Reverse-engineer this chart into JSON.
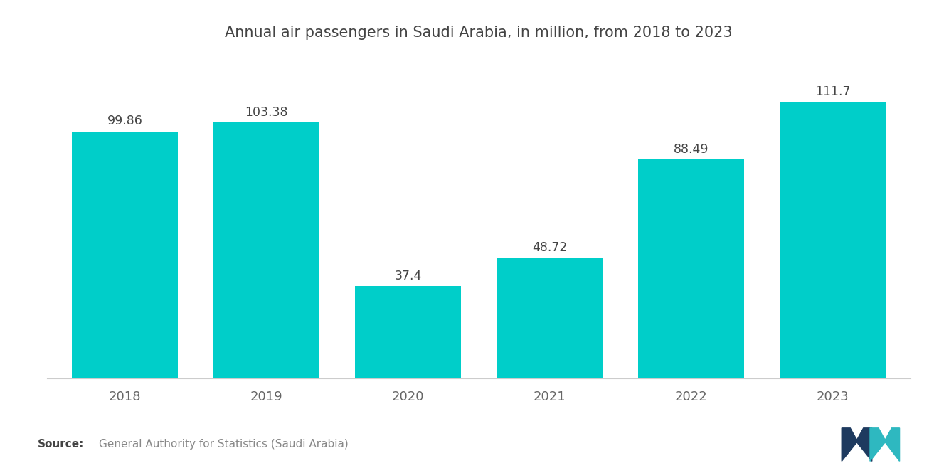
{
  "title": "Annual air passengers in Saudi Arabia, in million, from 2018 to 2023",
  "categories": [
    "2018",
    "2019",
    "2020",
    "2021",
    "2022",
    "2023"
  ],
  "values": [
    99.86,
    103.38,
    37.4,
    48.72,
    88.49,
    111.7
  ],
  "bar_color": "#00CEC9",
  "background_color": "#ffffff",
  "title_fontsize": 15,
  "xtick_fontsize": 13,
  "value_fontsize": 12.5,
  "source_bold": "Source:",
  "source_text": "General Authority for Statistics (Saudi Arabia)",
  "ylim": [
    0,
    130
  ],
  "bar_width": 0.75
}
